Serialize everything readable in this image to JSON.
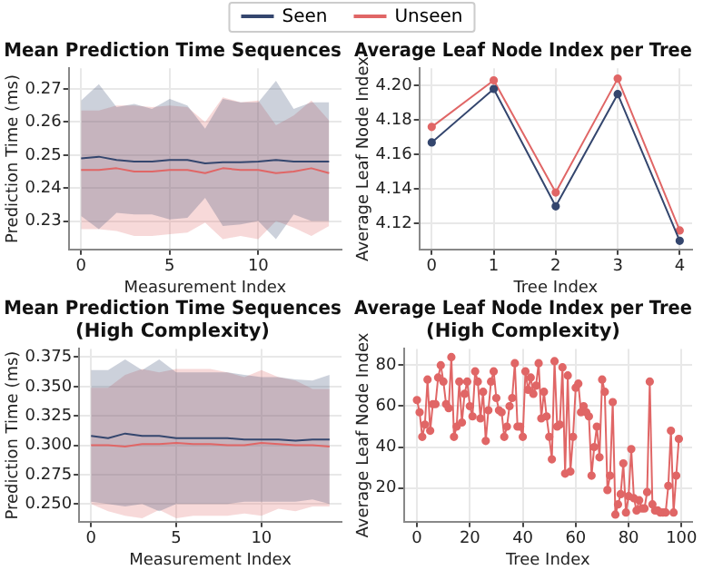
{
  "chart_data": [
    {
      "type": "line",
      "title": "Mean Prediction Time Sequences",
      "xlabel": "Measurement Index",
      "ylabel": "Prediction Time (ms)",
      "x": [
        0,
        1,
        2,
        3,
        4,
        5,
        6,
        7,
        8,
        9,
        10,
        11,
        12,
        13,
        14
      ],
      "xlim": [
        -0.7,
        14.7
      ],
      "xticks": [
        0,
        5,
        10
      ],
      "ylim": [
        0.2214,
        0.2763
      ],
      "yticks": [
        0.23,
        0.24,
        0.25,
        0.26,
        0.27
      ],
      "grid": true,
      "legend": "top",
      "marker": "none",
      "series": [
        {
          "name": "Seen",
          "color": "#34466e",
          "values": [
            0.249,
            0.2495,
            0.2485,
            0.248,
            0.248,
            0.2485,
            0.2485,
            0.2475,
            0.2478,
            0.2478,
            0.248,
            0.2485,
            0.248,
            0.248,
            0.248
          ],
          "lower": [
            0.2315,
            0.2275,
            0.2325,
            0.232,
            0.232,
            0.2305,
            0.231,
            0.237,
            0.2285,
            0.229,
            0.23,
            0.2245,
            0.232,
            0.23,
            0.23
          ],
          "upper": [
            0.2665,
            0.2715,
            0.2645,
            0.2655,
            0.264,
            0.267,
            0.265,
            0.258,
            0.267,
            0.266,
            0.266,
            0.2725,
            0.264,
            0.266,
            0.266
          ]
        },
        {
          "name": "Unseen",
          "color": "#e06666",
          "values": [
            0.2455,
            0.2455,
            0.246,
            0.245,
            0.245,
            0.2455,
            0.2455,
            0.2445,
            0.246,
            0.2455,
            0.2455,
            0.2445,
            0.245,
            0.246,
            0.2445
          ],
          "lower": [
            0.2275,
            0.2275,
            0.227,
            0.2255,
            0.2255,
            0.226,
            0.2265,
            0.2295,
            0.2245,
            0.2255,
            0.2245,
            0.23,
            0.228,
            0.2255,
            0.2285
          ],
          "upper": [
            0.2635,
            0.2635,
            0.265,
            0.265,
            0.2645,
            0.265,
            0.2645,
            0.26,
            0.2675,
            0.266,
            0.2665,
            0.259,
            0.262,
            0.2665,
            0.2605
          ]
        }
      ]
    },
    {
      "type": "line",
      "title": "Average Leaf Node Index per Tree",
      "xlabel": "Tree Index",
      "ylabel": "Average Leaf Node Index",
      "x": [
        0,
        1,
        2,
        3,
        4
      ],
      "xlim": [
        -0.2,
        4.2
      ],
      "xticks": [
        0,
        1,
        2,
        3,
        4
      ],
      "ylim": [
        4.105,
        4.21
      ],
      "yticks": [
        {
          "value": 4.12,
          "label": "4.12"
        },
        {
          "value": 4.14,
          "label": "4.14"
        },
        {
          "value": 4.16,
          "label": "4.16"
        },
        {
          "value": 4.18,
          "label": "4.18"
        },
        {
          "value": 4.2,
          "label": "4.20"
        }
      ],
      "grid": true,
      "marker": "circle",
      "series": [
        {
          "color": "#34466e",
          "values": [
            4.167,
            4.198,
            4.13,
            4.195,
            4.11
          ]
        },
        {
          "color": "#e06666",
          "values": [
            4.176,
            4.203,
            4.138,
            4.204,
            4.116
          ]
        }
      ]
    },
    {
      "type": "line",
      "title": "Mean Prediction Time Sequences\n(High Complexity)",
      "xlabel": "Measurement Index",
      "ylabel": "Prediction Time (ms)",
      "x": [
        0,
        1,
        2,
        3,
        4,
        5,
        6,
        7,
        8,
        9,
        10,
        11,
        12,
        13,
        14
      ],
      "xlim": [
        -0.7,
        14.7
      ],
      "xticks": [
        0,
        5,
        10
      ],
      "ylim": [
        0.235,
        0.382
      ],
      "yticks": [
        {
          "value": 0.25,
          "label": "0.250"
        },
        {
          "value": 0.275,
          "label": "0.275"
        },
        {
          "value": 0.3,
          "label": "0.300"
        },
        {
          "value": 0.325,
          "label": "0.325"
        },
        {
          "value": 0.35,
          "label": "0.350"
        },
        {
          "value": 0.375,
          "label": "0.375"
        }
      ],
      "grid": true,
      "marker": "none",
      "series": [
        {
          "color": "#34466e",
          "values": [
            0.308,
            0.306,
            0.31,
            0.308,
            0.308,
            0.306,
            0.306,
            0.306,
            0.306,
            0.305,
            0.305,
            0.305,
            0.304,
            0.305,
            0.305
          ],
          "lower": [
            0.252,
            0.25,
            0.248,
            0.25,
            0.244,
            0.25,
            0.25,
            0.25,
            0.25,
            0.252,
            0.252,
            0.252,
            0.252,
            0.254,
            0.25
          ],
          "upper": [
            0.364,
            0.364,
            0.373,
            0.364,
            0.373,
            0.362,
            0.362,
            0.362,
            0.362,
            0.36,
            0.358,
            0.358,
            0.356,
            0.355,
            0.36
          ]
        },
        {
          "color": "#e06666",
          "values": [
            0.3,
            0.3,
            0.299,
            0.301,
            0.301,
            0.302,
            0.301,
            0.301,
            0.3,
            0.3,
            0.302,
            0.301,
            0.3,
            0.3,
            0.299
          ],
          "lower": [
            0.25,
            0.244,
            0.24,
            0.238,
            0.245,
            0.238,
            0.24,
            0.24,
            0.24,
            0.242,
            0.24,
            0.246,
            0.244,
            0.248,
            0.248
          ],
          "upper": [
            0.349,
            0.349,
            0.36,
            0.365,
            0.362,
            0.365,
            0.365,
            0.365,
            0.362,
            0.358,
            0.364,
            0.358,
            0.355,
            0.348,
            0.348
          ]
        }
      ]
    },
    {
      "type": "line",
      "title": "Average Leaf Node Index per Tree\n(High Complexity)",
      "xlabel": "Tree Index",
      "ylabel": "Average Leaf Node Index",
      "x": [
        0,
        1,
        2,
        3,
        4,
        5,
        6,
        7,
        8,
        9,
        10,
        11,
        12,
        13,
        14,
        15,
        16,
        17,
        18,
        19,
        20,
        21,
        22,
        23,
        24,
        25,
        26,
        27,
        28,
        29,
        30,
        31,
        32,
        33,
        34,
        35,
        36,
        37,
        38,
        39,
        40,
        41,
        42,
        43,
        44,
        45,
        46,
        47,
        48,
        49,
        50,
        51,
        52,
        53,
        54,
        55,
        56,
        57,
        58,
        59,
        60,
        61,
        62,
        63,
        64,
        65,
        66,
        67,
        68,
        69,
        70,
        71,
        72,
        73,
        74,
        75,
        76,
        77,
        78,
        79,
        80,
        81,
        82,
        83,
        84,
        85,
        86,
        87,
        88,
        89,
        90,
        91,
        92,
        93,
        94,
        95,
        96,
        97,
        98,
        99
      ],
      "xlim": [
        -5,
        104
      ],
      "xticks": [
        0,
        20,
        40,
        60,
        80,
        100
      ],
      "ylim": [
        3.5,
        88
      ],
      "yticks": [
        20,
        40,
        60,
        80
      ],
      "grid": true,
      "marker": "circle",
      "series": [
        {
          "color": "#e06666",
          "values": [
            63,
            57,
            45,
            51,
            73,
            48,
            61,
            61,
            74,
            80,
            72,
            61,
            59,
            84,
            45,
            50,
            72,
            52,
            66,
            72,
            60,
            55,
            77,
            72,
            54,
            67,
            43,
            58,
            72,
            77,
            64,
            58,
            57,
            45,
            50,
            60,
            64,
            81,
            50,
            50,
            45,
            77,
            68,
            74,
            66,
            70,
            81,
            54,
            67,
            55,
            45,
            34,
            82,
            50,
            51,
            79,
            27,
            75,
            28,
            45,
            69,
            71,
            57,
            60,
            57,
            55,
            26,
            40,
            50,
            35,
            73,
            67,
            19,
            26,
            62,
            7,
            12,
            17,
            32,
            8,
            16,
            39,
            15,
            9,
            14,
            10,
            10,
            18,
            72,
            12,
            9,
            9,
            8,
            8,
            8,
            21,
            48,
            8,
            26,
            44
          ]
        }
      ]
    }
  ]
}
